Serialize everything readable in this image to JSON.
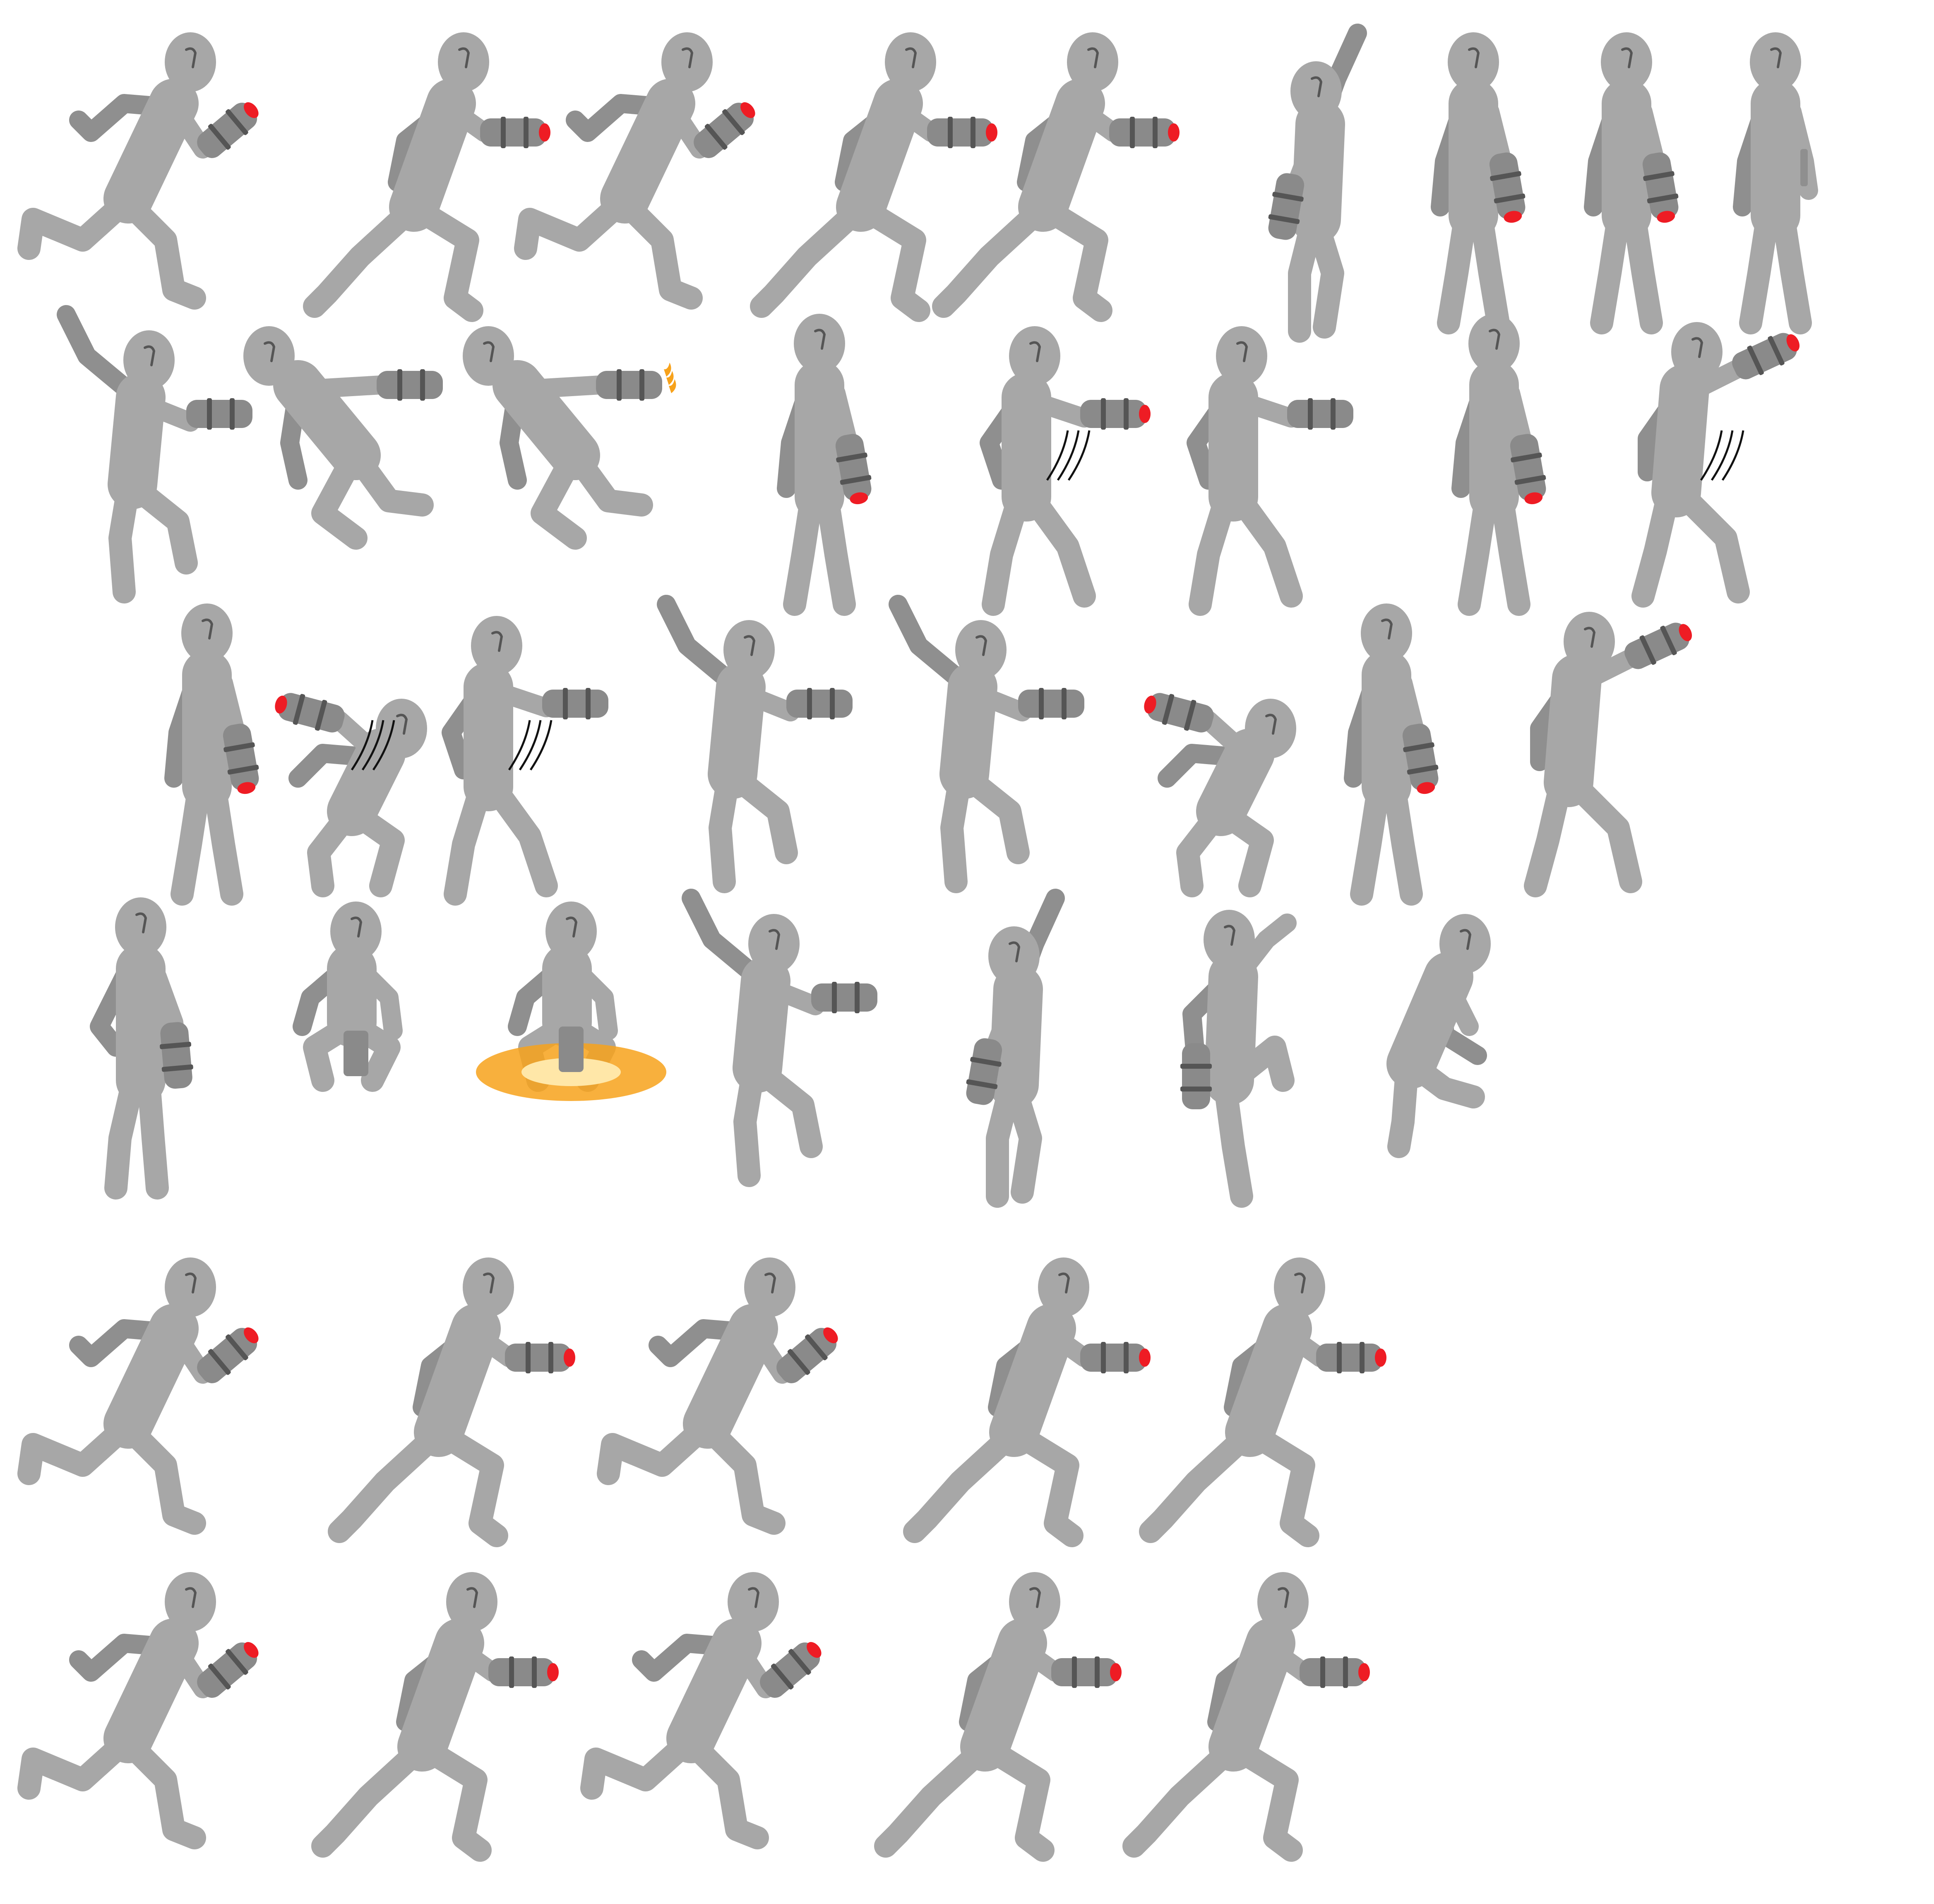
{
  "sheet": {
    "background": "#ffffff",
    "colors": {
      "body": "#a7a7a7",
      "shade": "#8f8f8f",
      "cannon": "#8a8a8a",
      "band": "#555555",
      "muzzle": "#ee1c24",
      "flame": "#f7a21b",
      "motion_line": "#111111"
    },
    "rows": [
      {
        "name": "run-right-cannon-forward",
        "frames": [
          "run-a",
          "run-b",
          "run-c",
          "run-d",
          "run-e",
          "reach-up",
          "idle-cannon",
          "idle-cannon",
          "idle-slim"
        ]
      },
      {
        "name": "attack-and-fly",
        "frames": [
          "jump-wave",
          "fly-punch",
          "fly-boost",
          "idle-cannon",
          "swipe",
          "punch",
          "idle-cannon",
          "swipe-up"
        ]
      },
      {
        "name": "crouch-and-blast",
        "frames": [
          "idle-cannon",
          "crouch-swipe",
          "lean-swipe",
          "jump-punch",
          "jump-wave",
          "crouch-aim",
          "idle-cannon",
          "aim-up"
        ]
      },
      {
        "name": "misc-poses",
        "frames": [
          "idle-back",
          "crouch-down",
          "crouch-fire",
          "jump-wave",
          "reach-up",
          "climb",
          "kneel"
        ]
      },
      {
        "name": "run-right-cannon-raised",
        "frames": [
          "run-a",
          "run-b",
          "run-c",
          "run-d",
          "run-e"
        ]
      },
      {
        "name": "run-right-cannon-up",
        "frames": [
          "run-a",
          "run-b",
          "run-c",
          "run-d",
          "run-e"
        ]
      }
    ]
  }
}
